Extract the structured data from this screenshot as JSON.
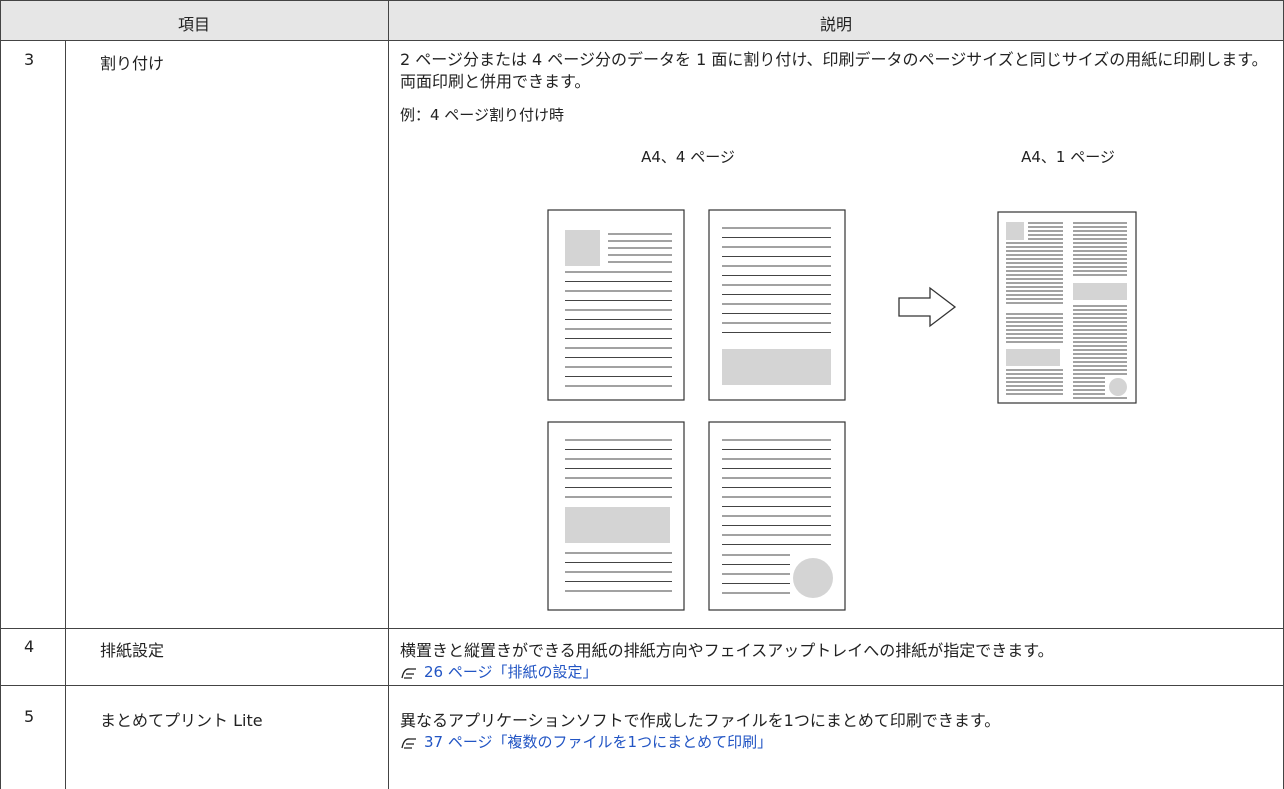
{
  "table": {
    "header": [
      "項目",
      "説明"
    ],
    "rows": [
      {
        "number": "3",
        "item": "割り付け",
        "description": "2 ページ分または 4 ページ分のデータを 1 面に割り付け、印刷データのページサイズと同じサイズの用紙に印刷します。両面印刷と併用できます。",
        "example": "例：4 ページ割り付け時",
        "figure": {
          "before": "A4、4 ページ",
          "after": "A4、1 ページ"
        }
      },
      {
        "number": "4",
        "item": "排紙設定",
        "description": "横置きと縦置きができる用紙の排紙方向やフェイスアップトレイへの排紙が指定できます。",
        "link": "26 ページ「排紙の設定」"
      },
      {
        "number": "5",
        "item": "まとめてプリント Lite",
        "description": "異なるアプリケーションソフトで作成したファイルを1つにまとめて印刷できます。",
        "link": "37 ページ「複数のファイルを1つにまとめて印刷」"
      }
    ]
  }
}
